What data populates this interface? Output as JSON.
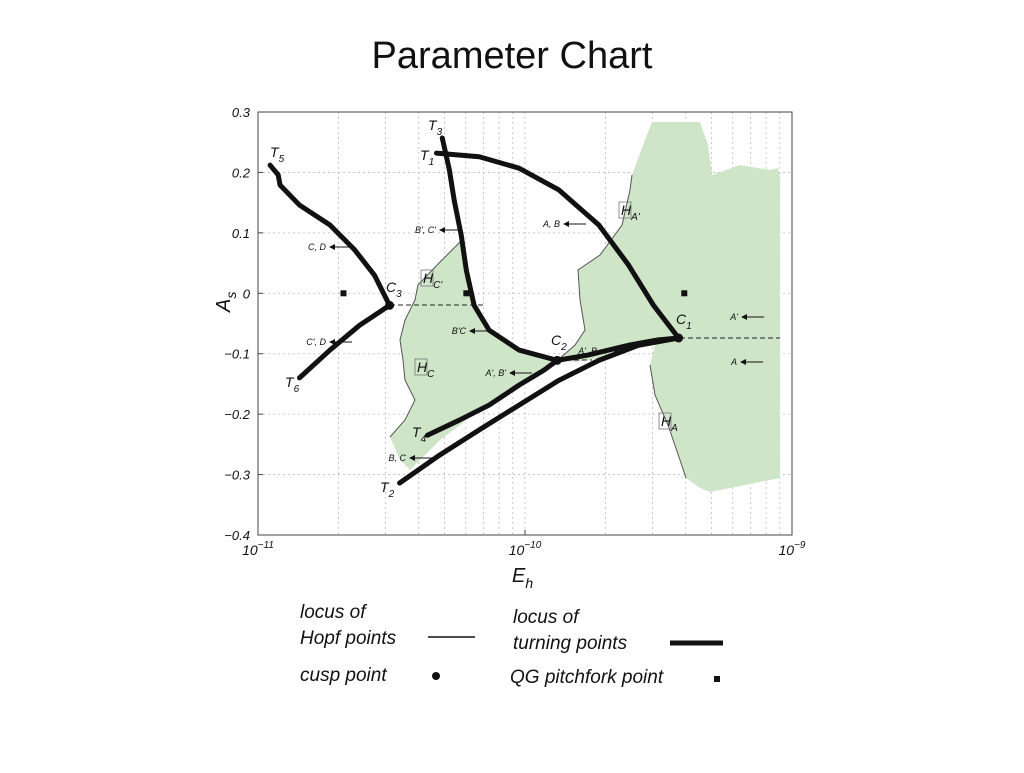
{
  "chart_data": {
    "type": "line",
    "title": "Parameter Chart",
    "x_label": {
      "text": "E",
      "sub": "h"
    },
    "y_label": {
      "text": "A",
      "sub": "s"
    },
    "xscale": "log",
    "xlim": [
      1e-11,
      1e-09
    ],
    "ylim": [
      -0.4,
      0.3
    ],
    "xticks": [
      {
        "value": 1e-11,
        "label": "10",
        "power": "−11"
      },
      {
        "value": 1e-10,
        "label": "10",
        "power": "−10"
      },
      {
        "value": 1e-09,
        "label": "10",
        "power": "−9"
      }
    ],
    "xminorticks": [
      2e-11,
      3e-11,
      4e-11,
      5e-11,
      6e-11,
      7e-11,
      8e-11,
      9e-11,
      2e-10,
      3e-10,
      4e-10,
      5e-10,
      6e-10,
      7e-10,
      8e-10,
      9e-10
    ],
    "yticks": [
      {
        "value": 0.3,
        "label": "0.3"
      },
      {
        "value": 0.2,
        "label": "0.2"
      },
      {
        "value": 0.1,
        "label": "0.1"
      },
      0,
      {
        "value": -0.1,
        "label": "−0.1"
      },
      {
        "value": -0.2,
        "label": "−0.2"
      },
      {
        "value": -0.3,
        "label": "−0.3"
      },
      {
        "value": -0.4,
        "label": "−0.4"
      }
    ],
    "grid": true,
    "series": [
      {
        "color": "#111111",
        "x": [
          1.11e-11,
          1.19e-11,
          1.21e-11,
          1.43e-11,
          1.86e-11,
          2.3e-11,
          2.73e-11,
          3.11e-11
        ],
        "values": [
          0.212,
          0.196,
          0.179,
          0.146,
          0.113,
          0.072,
          0.03,
          -0.02
        ]
      },
      {
        "color": "#111111",
        "x": [
          1.43e-11,
          1.86e-11,
          2.4e-11,
          3.11e-11
        ],
        "values": [
          -0.14,
          -0.094,
          -0.053,
          -0.02
        ]
      },
      {
        "color": "#111111",
        "x": [
          4.9e-11,
          5.21e-11,
          5.43e-11,
          5.77e-11,
          6.03e-11,
          6.45e-11,
          7.34e-11,
          9.5e-11,
          1.32e-10
        ],
        "values": [
          0.257,
          0.204,
          0.154,
          0.096,
          0.038,
          -0.02,
          -0.061,
          -0.094,
          -0.111
        ]
      },
      {
        "color": "#111111",
        "x": [
          4.66e-11,
          6.74e-11,
          9.5e-11,
          1.34e-10,
          1.89e-10,
          2.44e-10,
          3.03e-10,
          3.76e-10
        ],
        "values": [
          0.232,
          0.226,
          0.207,
          0.171,
          0.113,
          0.047,
          -0.02,
          -0.074
        ]
      },
      {
        "color": "#111111",
        "x": [
          4.31e-11,
          5.67e-11,
          7.34e-11,
          9.5e-11,
          1.18e-10,
          1.32e-10
        ],
        "values": [
          -0.235,
          -0.21,
          -0.185,
          -0.152,
          -0.127,
          -0.111
        ]
      },
      {
        "color": "#111111",
        "x": [
          3.39e-11,
          4.78e-11,
          6.74e-11,
          9.5e-11,
          1.34e-10,
          1.89e-10,
          2.66e-10,
          3.76e-10
        ],
        "values": [
          -0.314,
          -0.268,
          -0.226,
          -0.185,
          -0.144,
          -0.111,
          -0.086,
          -0.074
        ]
      },
      {
        "color": "#111111",
        "x": [
          1.32e-10,
          1.73e-10,
          2.44e-10,
          3.16e-10,
          3.76e-10
        ],
        "values": [
          -0.111,
          -0.102,
          -0.086,
          -0.077,
          -0.074
        ]
      }
    ],
    "cusp_points": {
      "x": [
        3.11e-11,
        1.32e-10,
        3.76e-10
      ],
      "values": [
        -0.02,
        -0.111,
        -0.074
      ]
    },
    "pitchfork_points": {
      "x": [
        2.09e-11,
        6.03e-11,
        3.95e-10
      ],
      "values": [
        0,
        0,
        0
      ]
    },
    "annotations": [
      {
        "text": "T",
        "sub": "5"
      },
      {
        "text": "T",
        "sub": "6"
      },
      {
        "text": "T",
        "sub": "3"
      },
      {
        "text": "T",
        "sub": "1"
      },
      {
        "text": "T",
        "sub": "4"
      },
      {
        "text": "T",
        "sub": "2"
      },
      {
        "text": "C",
        "sub": "3"
      },
      {
        "text": "C",
        "sub": "2"
      },
      {
        "text": "C",
        "sub": "1"
      },
      {
        "text": "H",
        "sub": "C'"
      },
      {
        "text": "H",
        "sub": "C"
      },
      {
        "text": "H",
        "sub": "A'"
      },
      {
        "text": "H",
        "sub": "A"
      }
    ],
    "arrow_labels": [
      "C, D",
      "C', D",
      "B', C'",
      "A, B",
      "B'C",
      "A', B'",
      "A', B",
      "B, C",
      "A'",
      "A"
    ],
    "legend": [
      {
        "label": [
          "locus of",
          "Hopf points"
        ],
        "marker": "thin-line"
      },
      {
        "label": [
          "locus of",
          "turning points"
        ],
        "marker": "thick-line"
      },
      {
        "label": [
          "cusp point"
        ],
        "marker": "dot"
      },
      {
        "label": [
          "QG pitchfork point"
        ],
        "marker": "square"
      }
    ]
  }
}
